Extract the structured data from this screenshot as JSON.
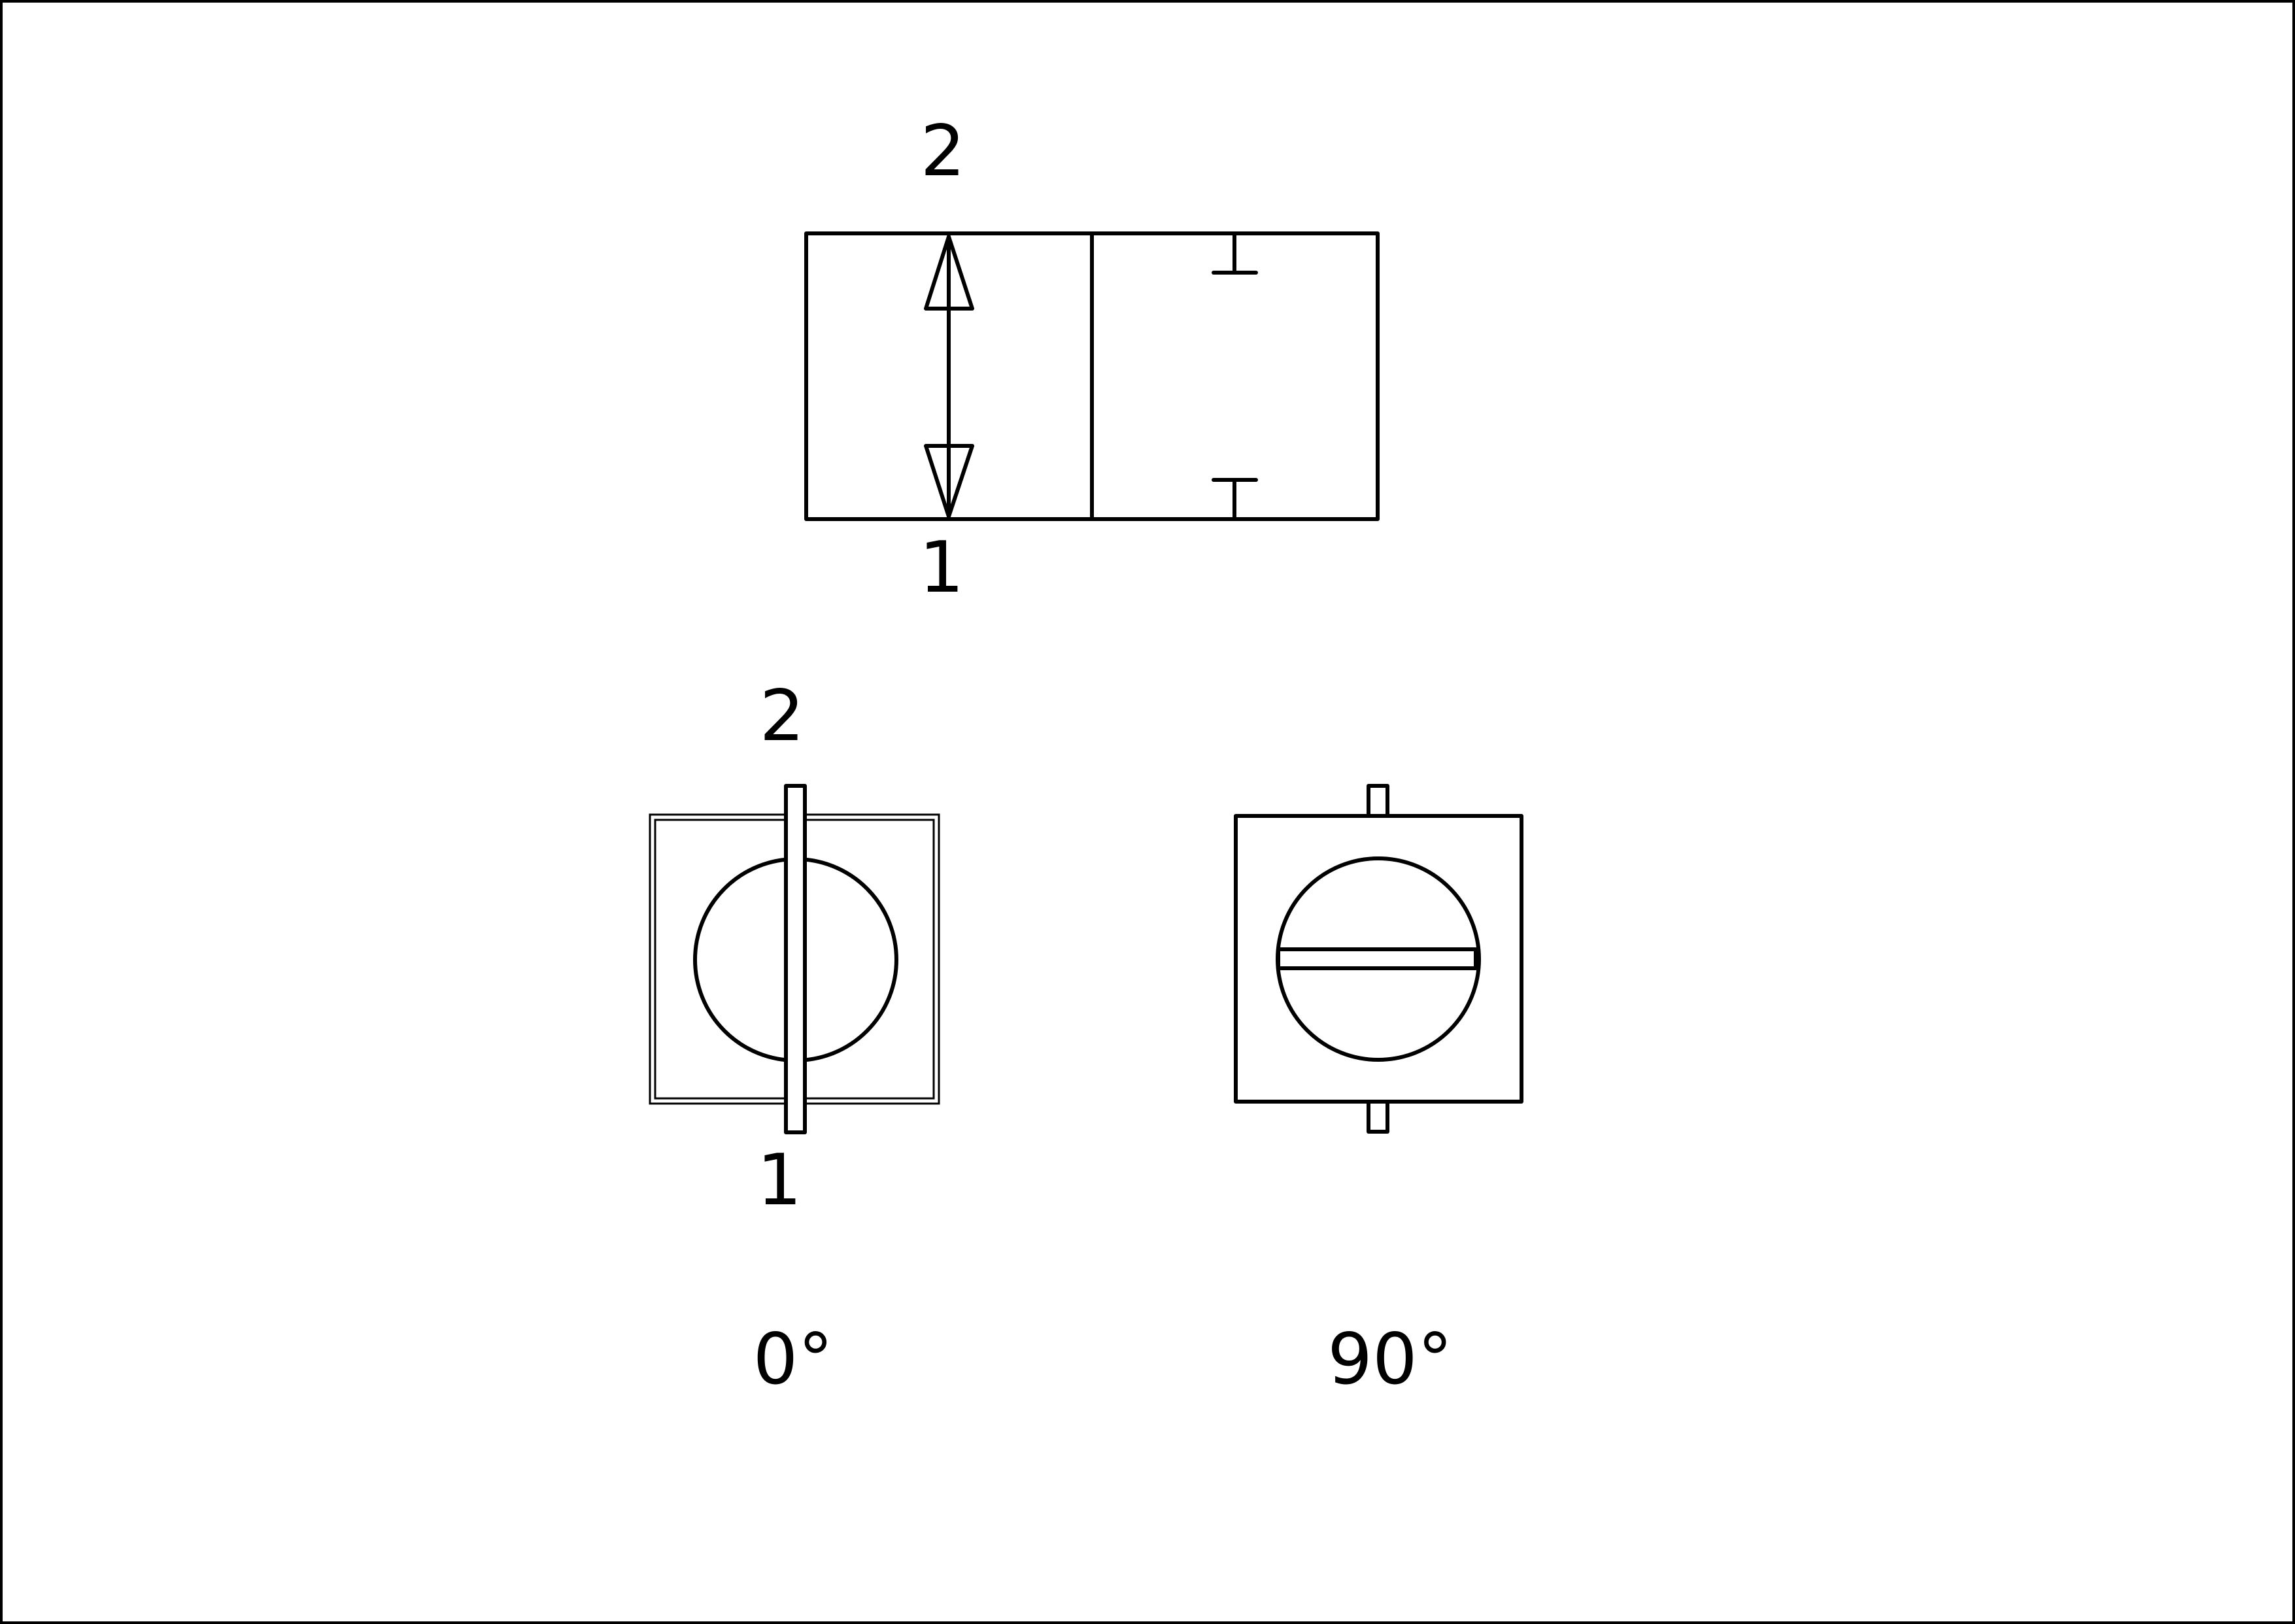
{
  "valve_symbol": {
    "port_top_label": "2",
    "port_bottom_label": "1"
  },
  "open_position": {
    "port_top_label": "2",
    "port_bottom_label": "1",
    "angle_label": "0°"
  },
  "closed_position": {
    "angle_label": "90°"
  },
  "colors": {
    "line": "#000000",
    "background": "#ffffff"
  }
}
